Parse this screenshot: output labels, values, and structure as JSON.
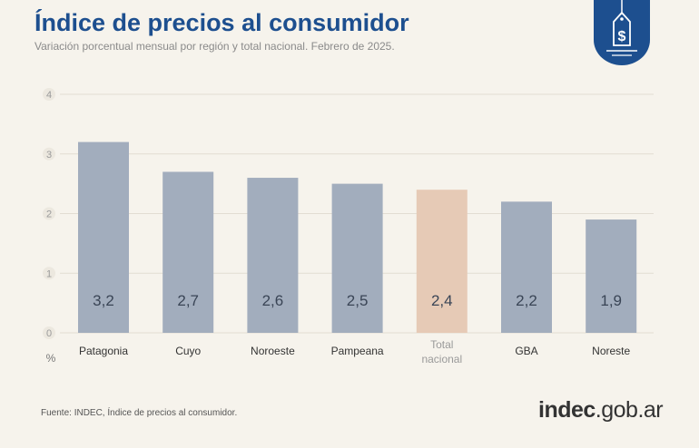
{
  "header": {
    "title": "Índice de precios al consumidor",
    "subtitle": "Variación porcentual mensual por región y total nacional. Febrero de 2025."
  },
  "chart_data": {
    "type": "bar",
    "categories": [
      "Patagonia",
      "Cuyo",
      "Noroeste",
      "Pampeana",
      "Total nacional",
      "GBA",
      "Noreste"
    ],
    "values": [
      3.2,
      2.7,
      2.6,
      2.5,
      2.4,
      2.2,
      1.9
    ],
    "value_labels": [
      "3,2",
      "2,7",
      "2,6",
      "2,5",
      "2,4",
      "2,2",
      "1,9"
    ],
    "highlight_category": "Total nacional",
    "ylim": [
      0,
      4
    ],
    "yticks": [
      "0",
      "1",
      "2",
      "3",
      "4"
    ],
    "ylabel": "%",
    "grid": true,
    "colors": {
      "bar": "#a2adbd",
      "highlight": "#e6cab6",
      "bar_label": "#3a4556",
      "category_label": "#333333",
      "highlight_label": "#9a9a9a",
      "title": "#1d4f8f"
    }
  },
  "footer": {
    "source": "Fuente: INDEC, Índice de precios al consumidor.",
    "logo_main": "indec",
    "logo_domain": ".gob.ar"
  },
  "badge": {
    "icon": "price-tag-dollar-icon",
    "symbol": "$",
    "color": "#1d4f8f"
  }
}
